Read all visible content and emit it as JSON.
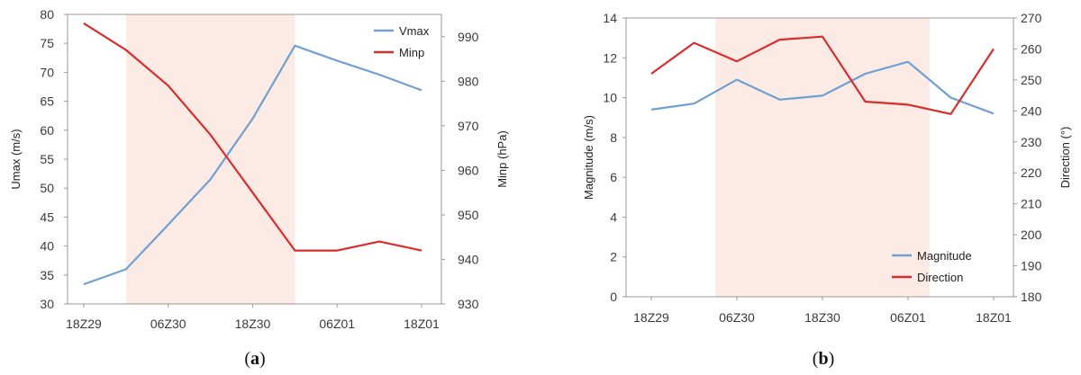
{
  "chart_data": [
    {
      "id": "a",
      "type": "line",
      "panel_label": {
        "open": "(",
        "letter": "a",
        "close": ")"
      },
      "categories": [
        "18Z29",
        "",
        "06Z30",
        "",
        "18Z30",
        "",
        "06Z01",
        "",
        "18Z01"
      ],
      "x_tick_labels": [
        "18Z29",
        "06Z30",
        "18Z30",
        "06Z01",
        "18Z01"
      ],
      "ylabel": "Umax (m/s)",
      "y2label": "Minp (hPa)",
      "ylim": [
        30,
        80
      ],
      "y2lim": [
        930,
        995
      ],
      "yticks": [
        30,
        35,
        40,
        45,
        50,
        55,
        60,
        65,
        70,
        75,
        80
      ],
      "y2ticks": [
        930,
        940,
        950,
        960,
        970,
        980,
        990
      ],
      "shaded_x_range": [
        1,
        5
      ],
      "grid": false,
      "legend_position": "top-right",
      "series": [
        {
          "name": "Vmax",
          "axis": "left",
          "color": "#6fa0d1",
          "values": [
            33.4,
            36.0,
            43.7,
            51.5,
            62.0,
            74.6,
            72.0,
            69.6,
            66.9
          ]
        },
        {
          "name": "Minp",
          "axis": "right",
          "color": "#d92d2d",
          "values": [
            993,
            987,
            979,
            968,
            955,
            942,
            942,
            944,
            942
          ]
        }
      ]
    },
    {
      "id": "b",
      "type": "line",
      "panel_label": {
        "open": "(",
        "letter": "b",
        "close": ")"
      },
      "categories": [
        "18Z29",
        "",
        "06Z30",
        "",
        "18Z30",
        "",
        "06Z01",
        "",
        "18Z01"
      ],
      "x_tick_labels": [
        "18Z29",
        "06Z30",
        "18Z30",
        "06Z01",
        "18Z01"
      ],
      "ylabel": "Magnitude (m/s)",
      "y2label": "Direction (°)",
      "ylim": [
        0,
        14
      ],
      "y2lim": [
        180,
        270
      ],
      "yticks": [
        0,
        2,
        4,
        6,
        8,
        10,
        12,
        14
      ],
      "y2ticks": [
        180,
        190,
        200,
        210,
        220,
        230,
        240,
        250,
        260,
        270
      ],
      "shaded_x_range": [
        1.5,
        6.5
      ],
      "grid": false,
      "legend_position": "bottom-right",
      "series": [
        {
          "name": "Magnitude",
          "axis": "left",
          "color": "#6fa0d1",
          "values": [
            9.4,
            9.7,
            10.9,
            9.9,
            10.1,
            11.2,
            11.8,
            10.0,
            9.2
          ]
        },
        {
          "name": "Direction",
          "axis": "right",
          "color": "#d92d2d",
          "values": [
            252,
            262,
            256,
            263,
            264,
            243,
            242,
            239,
            260
          ]
        }
      ]
    }
  ]
}
